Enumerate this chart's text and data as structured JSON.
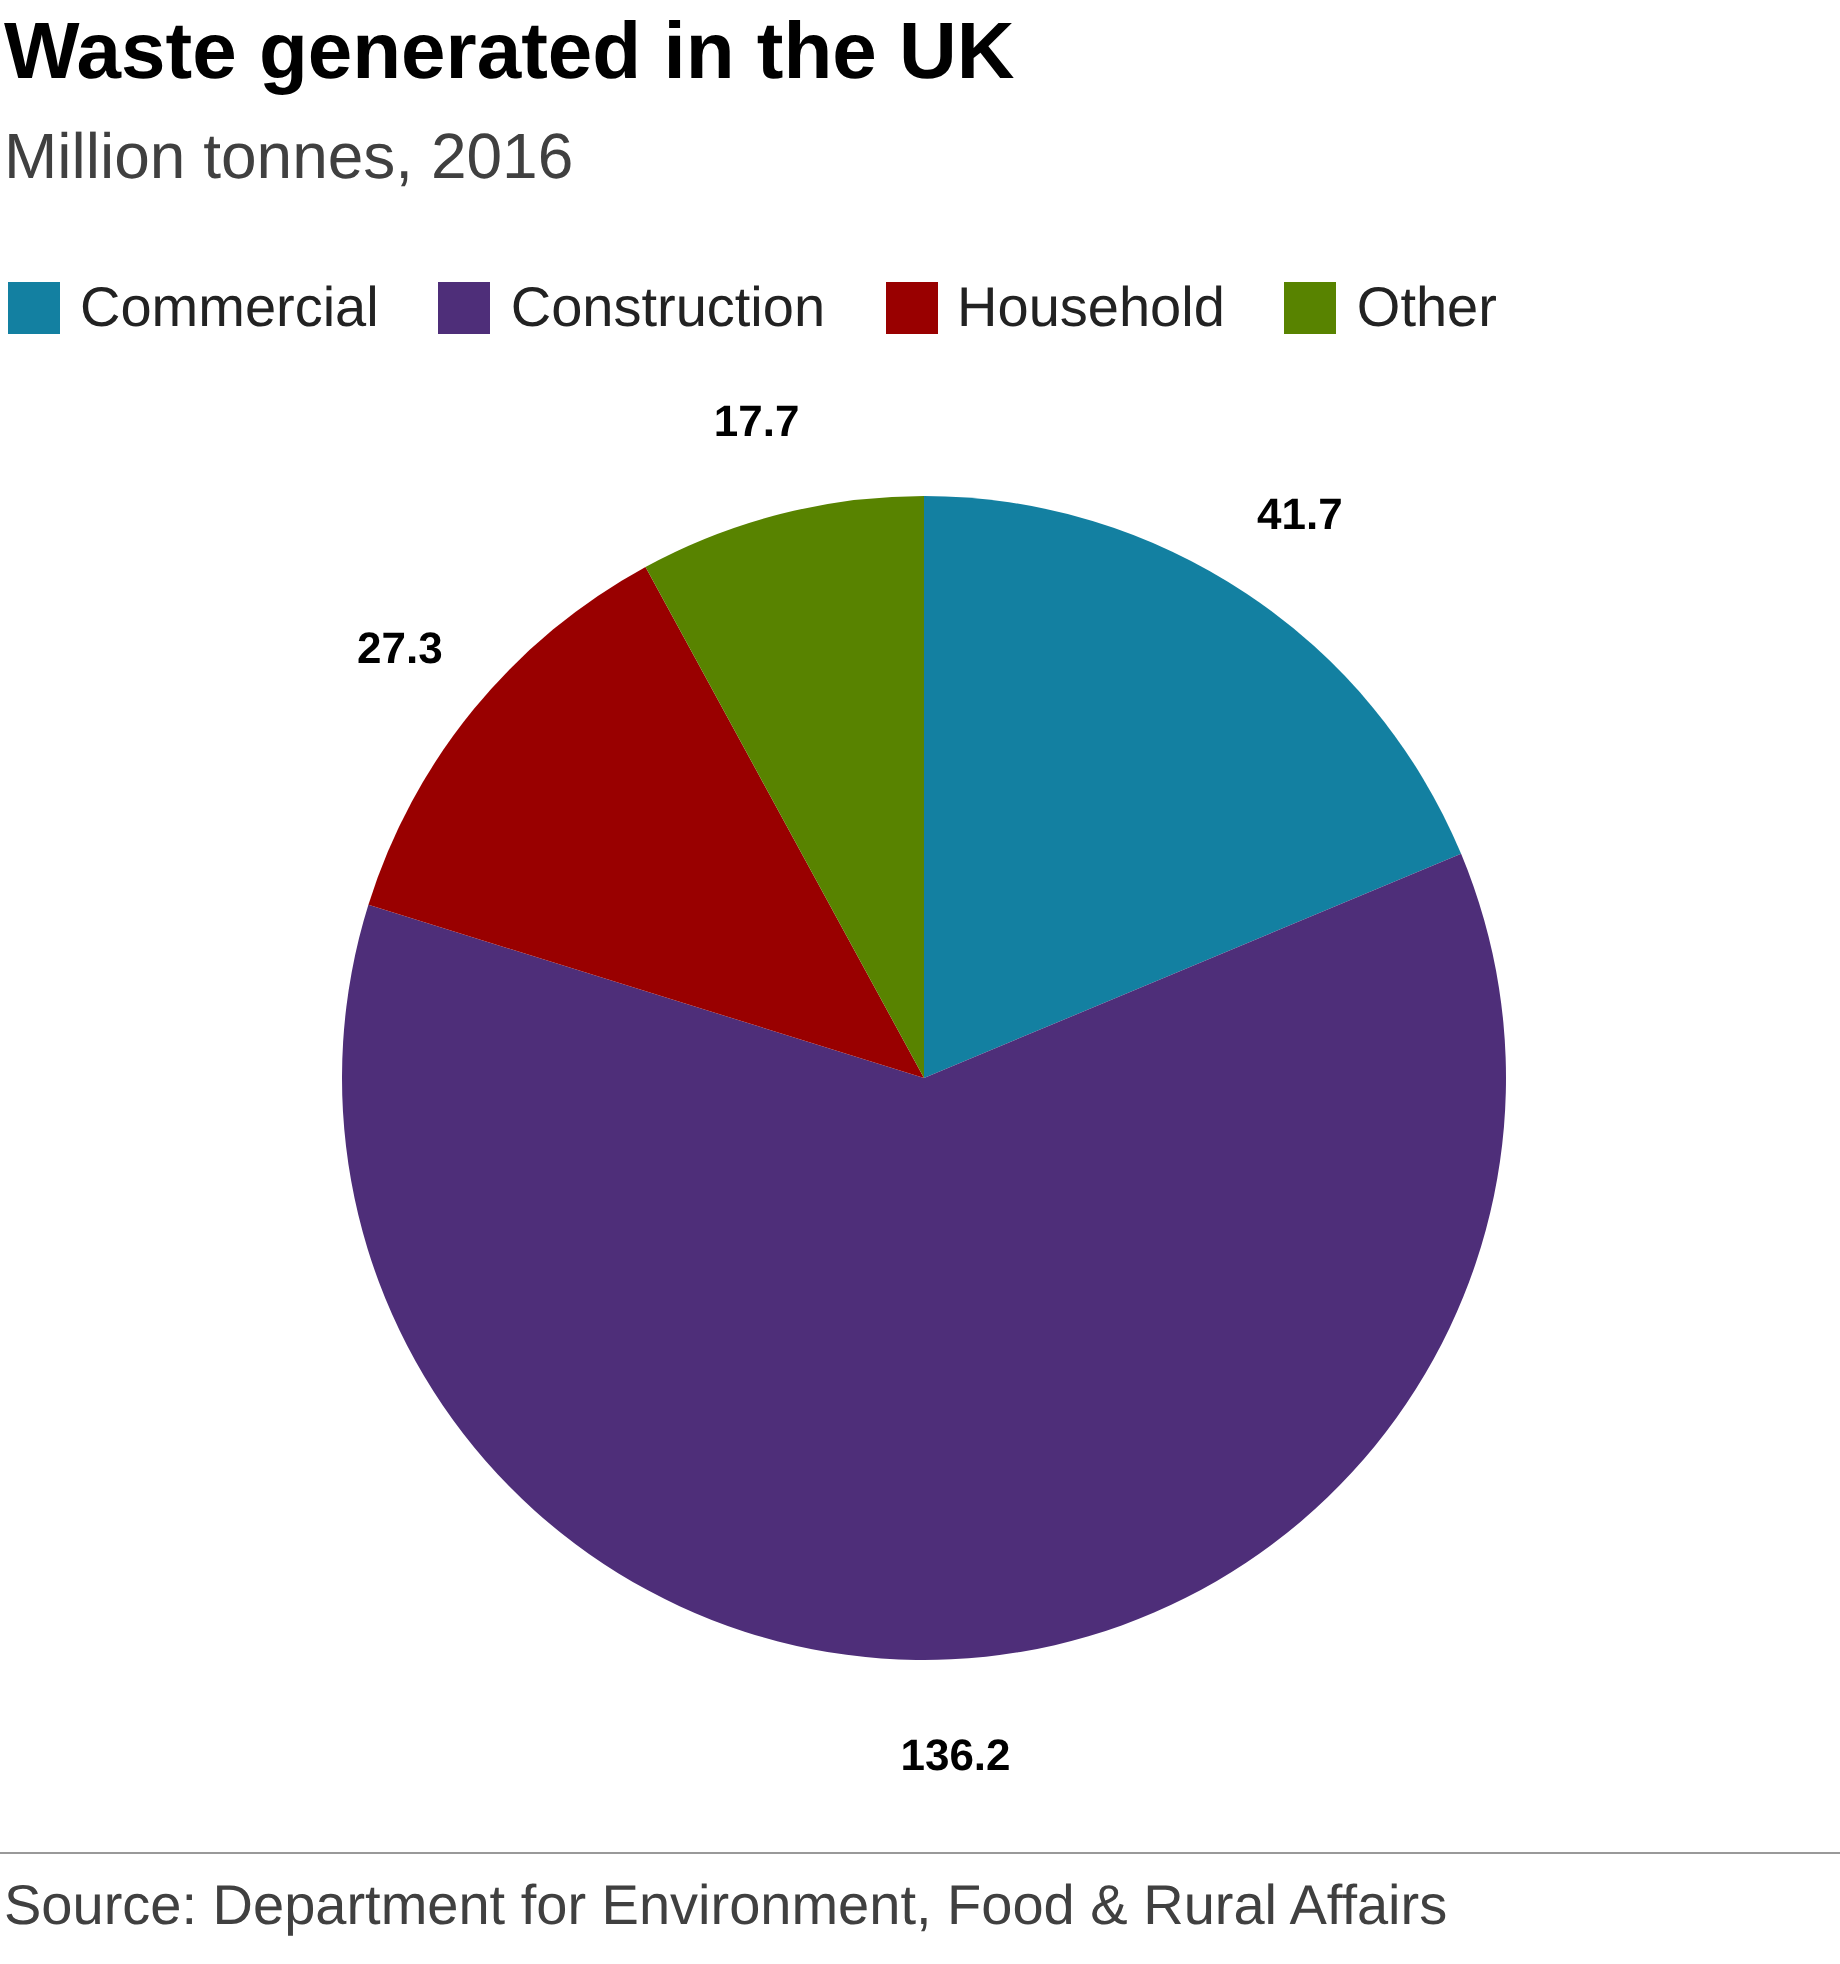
{
  "chart_data": {
    "type": "pie",
    "title": "Waste generated in the UK",
    "subtitle": "Million tonnes, 2016",
    "categories": [
      "Commercial",
      "Construction",
      "Household",
      "Other"
    ],
    "values": [
      41.7,
      136.2,
      27.3,
      17.7
    ],
    "colors": [
      "#1380a1",
      "#4e2e79",
      "#990000",
      "#588300"
    ],
    "data_labels": true,
    "legend": "top left",
    "annotations": [
      "Source: Department for Environment, Food & Rural Affairs"
    ]
  }
}
